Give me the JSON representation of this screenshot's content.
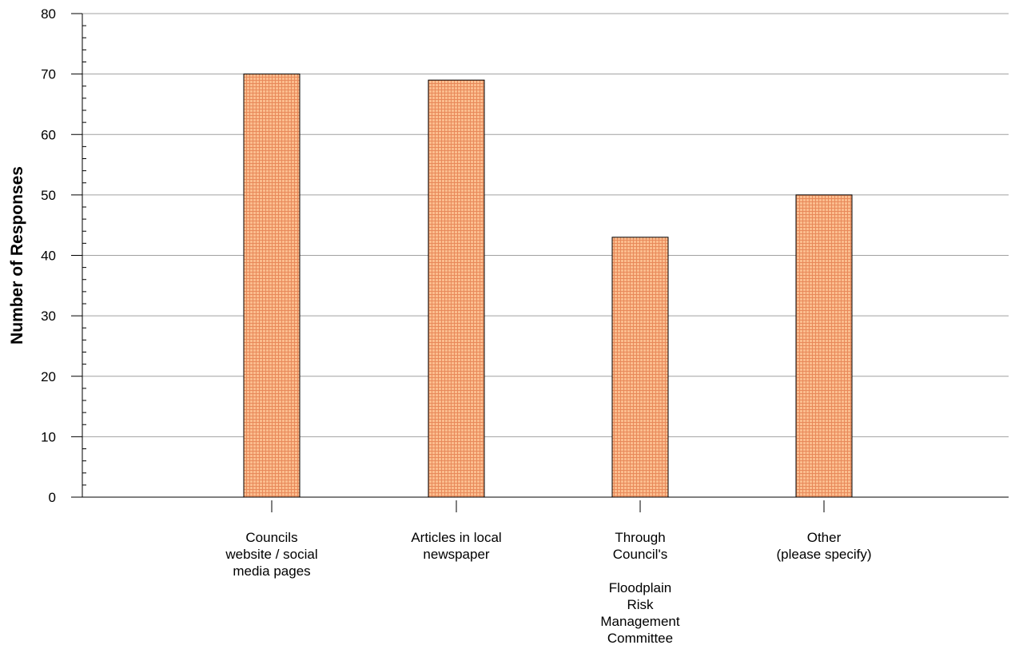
{
  "chart_data": {
    "type": "bar",
    "title": "",
    "xlabel": "",
    "ylabel": "Number of Responses",
    "ylim": [
      0,
      80
    ],
    "y_major_step": 10,
    "y_minor_step": 2,
    "grid": true,
    "categories": [
      [
        "Councils",
        "website / social",
        "media pages"
      ],
      [
        "Articles in local",
        "newspaper"
      ],
      [
        "Through",
        "Council's",
        "",
        "Floodplain",
        "Risk",
        "Management",
        "Committee"
      ],
      [
        "Other",
        "(please specify)"
      ]
    ],
    "values": [
      70,
      69,
      43,
      50
    ],
    "colors": {
      "bar_fill": "#fbbd8e",
      "bar_hatch": "#e8895a",
      "bar_stroke": "#000000",
      "grid": "#a0a0a0",
      "axis": "#000000"
    }
  }
}
